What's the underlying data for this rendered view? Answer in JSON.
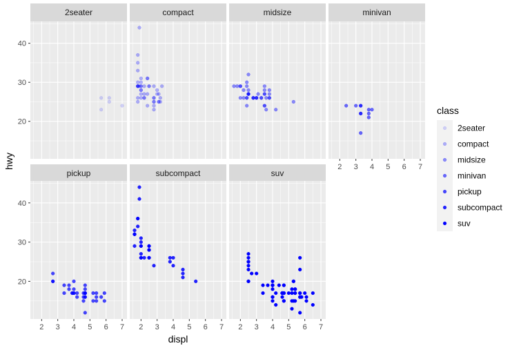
{
  "chart_data": {
    "type": "scatter",
    "facet_by": "class",
    "xlabel": "displ",
    "ylabel": "hwy",
    "x_ticks": [
      2,
      3,
      4,
      5,
      6,
      7
    ],
    "y_ticks": [
      20,
      30,
      40
    ],
    "xlim": [
      1.3,
      7.3
    ],
    "ylim": [
      10.4,
      45.6
    ],
    "legend": {
      "title": "class",
      "position": "right",
      "entries": [
        {
          "label": "2seater",
          "alpha": 0.15
        },
        {
          "label": "compact",
          "alpha": 0.29
        },
        {
          "label": "midsize",
          "alpha": 0.43
        },
        {
          "label": "minivan",
          "alpha": 0.57
        },
        {
          "label": "pickup",
          "alpha": 0.71
        },
        {
          "label": "subcompact",
          "alpha": 0.86
        },
        {
          "label": "suv",
          "alpha": 1.0
        }
      ]
    },
    "point_color": "#0000ff",
    "panel_background": "#ebebeb",
    "strip_background": "#d9d9d9",
    "panels": [
      {
        "name": "2seater",
        "points": [
          [
            5.7,
            26
          ],
          [
            5.7,
            23
          ],
          [
            6.2,
            26
          ],
          [
            6.2,
            25
          ],
          [
            7.0,
            24
          ]
        ]
      },
      {
        "name": "compact",
        "points": [
          [
            1.8,
            29
          ],
          [
            1.8,
            29
          ],
          [
            2.0,
            31
          ],
          [
            2.0,
            30
          ],
          [
            2.8,
            26
          ],
          [
            2.8,
            26
          ],
          [
            3.1,
            27
          ],
          [
            1.8,
            26
          ],
          [
            1.8,
            25
          ],
          [
            2.0,
            28
          ],
          [
            2.0,
            27
          ],
          [
            2.8,
            25
          ],
          [
            2.8,
            25
          ],
          [
            3.1,
            25
          ],
          [
            3.1,
            25
          ],
          [
            2.2,
            26
          ],
          [
            2.2,
            29
          ],
          [
            2.4,
            31
          ],
          [
            2.4,
            31
          ],
          [
            3.0,
            28
          ],
          [
            3.0,
            27
          ],
          [
            3.3,
            29
          ],
          [
            1.8,
            29
          ],
          [
            1.8,
            29
          ],
          [
            1.8,
            33
          ],
          [
            1.8,
            35
          ],
          [
            1.8,
            37
          ],
          [
            1.9,
            44
          ],
          [
            1.9,
            29
          ],
          [
            2.0,
            26
          ],
          [
            2.0,
            29
          ],
          [
            2.0,
            29
          ],
          [
            2.0,
            28
          ],
          [
            2.5,
            29
          ],
          [
            2.5,
            29
          ],
          [
            2.8,
            23
          ],
          [
            2.8,
            24
          ],
          [
            2.8,
            29
          ],
          [
            3.2,
            25
          ],
          [
            3.2,
            26
          ],
          [
            1.8,
            30
          ],
          [
            2.2,
            27
          ],
          [
            2.2,
            26
          ],
          [
            2.4,
            24
          ],
          [
            2.4,
            27
          ]
        ]
      },
      {
        "name": "midsize",
        "points": [
          [
            2.4,
            30
          ],
          [
            2.4,
            29
          ],
          [
            2.5,
            32
          ],
          [
            2.5,
            27
          ],
          [
            3.3,
            26
          ],
          [
            3.3,
            26
          ],
          [
            3.5,
            27
          ],
          [
            3.5,
            28
          ],
          [
            3.5,
            29
          ],
          [
            3.8,
            26
          ],
          [
            3.8,
            26
          ],
          [
            3.8,
            28
          ],
          [
            3.8,
            27
          ],
          [
            1.6,
            29
          ],
          [
            2.0,
            29
          ],
          [
            2.4,
            26
          ],
          [
            2.5,
            27
          ],
          [
            2.8,
            26
          ],
          [
            2.8,
            26
          ],
          [
            3.1,
            27
          ],
          [
            3.6,
            26
          ],
          [
            3.6,
            23
          ],
          [
            4.2,
            23
          ],
          [
            2.0,
            29
          ],
          [
            2.0,
            26
          ],
          [
            2.4,
            24
          ],
          [
            2.4,
            26
          ],
          [
            2.5,
            27
          ],
          [
            2.5,
            28
          ],
          [
            3.0,
            26
          ],
          [
            3.0,
            26
          ],
          [
            3.5,
            24
          ],
          [
            3.5,
            27
          ],
          [
            5.3,
            25
          ],
          [
            2.2,
            28
          ],
          [
            2.2,
            26
          ],
          [
            2.5,
            27
          ],
          [
            3.0,
            26
          ],
          [
            3.5,
            24
          ],
          [
            1.8,
            29
          ],
          [
            2.8,
            26
          ]
        ]
      },
      {
        "name": "minivan",
        "points": [
          [
            2.4,
            24
          ],
          [
            3.0,
            24
          ],
          [
            3.3,
            22
          ],
          [
            3.3,
            22
          ],
          [
            3.3,
            24
          ],
          [
            3.3,
            24
          ],
          [
            3.3,
            17
          ],
          [
            3.8,
            22
          ],
          [
            3.8,
            21
          ],
          [
            3.8,
            23
          ],
          [
            4.0,
            23
          ]
        ]
      },
      {
        "name": "pickup",
        "points": [
          [
            2.7,
            20
          ],
          [
            2.7,
            22
          ],
          [
            2.7,
            20
          ],
          [
            3.4,
            17
          ],
          [
            3.4,
            19
          ],
          [
            3.7,
            18
          ],
          [
            3.7,
            19
          ],
          [
            3.9,
            17
          ],
          [
            3.9,
            17
          ],
          [
            4.0,
            17
          ],
          [
            4.0,
            20
          ],
          [
            4.7,
            17
          ],
          [
            4.7,
            12
          ],
          [
            4.7,
            17
          ],
          [
            4.7,
            17
          ],
          [
            4.7,
            17
          ],
          [
            4.7,
            16
          ],
          [
            4.7,
            19
          ],
          [
            5.2,
            17
          ],
          [
            5.2,
            15
          ],
          [
            5.7,
            16
          ],
          [
            5.9,
            17
          ],
          [
            4.2,
            17
          ],
          [
            4.2,
            16
          ],
          [
            4.6,
            16
          ],
          [
            4.6,
            17
          ],
          [
            4.6,
            15
          ],
          [
            5.4,
            15
          ],
          [
            5.4,
            17
          ],
          [
            5.4,
            16
          ],
          [
            5.9,
            15
          ],
          [
            4.0,
            17
          ],
          [
            4.0,
            18
          ],
          [
            4.7,
            16
          ],
          [
            4.7,
            18
          ]
        ]
      },
      {
        "name": "subcompact",
        "points": [
          [
            3.8,
            26
          ],
          [
            3.8,
            25
          ],
          [
            4.0,
            26
          ],
          [
            4.0,
            24
          ],
          [
            4.6,
            21
          ],
          [
            4.6,
            22
          ],
          [
            4.6,
            23
          ],
          [
            5.4,
            20
          ],
          [
            1.6,
            33
          ],
          [
            1.6,
            32
          ],
          [
            1.6,
            32
          ],
          [
            1.6,
            29
          ],
          [
            1.6,
            32
          ],
          [
            1.8,
            34
          ],
          [
            1.8,
            36
          ],
          [
            1.8,
            36
          ],
          [
            2.0,
            29
          ],
          [
            2.0,
            26
          ],
          [
            2.0,
            27
          ],
          [
            2.0,
            30
          ],
          [
            2.0,
            31
          ],
          [
            2.2,
            26
          ],
          [
            2.5,
            26
          ],
          [
            2.5,
            28
          ],
          [
            2.5,
            26
          ],
          [
            2.5,
            29
          ],
          [
            2.5,
            28
          ],
          [
            2.8,
            24
          ],
          [
            1.9,
            44
          ],
          [
            1.9,
            41
          ],
          [
            2.0,
            29
          ],
          [
            2.0,
            26
          ],
          [
            2.5,
            28
          ],
          [
            2.5,
            29
          ]
        ]
      },
      {
        "name": "suv",
        "points": [
          [
            5.3,
            20
          ],
          [
            5.3,
            15
          ],
          [
            5.3,
            20
          ],
          [
            5.7,
            17
          ],
          [
            6.0,
            17
          ],
          [
            5.7,
            26
          ],
          [
            5.7,
            23
          ],
          [
            6.5,
            17
          ],
          [
            4.0,
            19
          ],
          [
            4.0,
            18
          ],
          [
            4.6,
            17
          ],
          [
            5.0,
            17
          ],
          [
            4.7,
            19
          ],
          [
            4.7,
            19
          ],
          [
            5.2,
            18
          ],
          [
            5.2,
            17
          ],
          [
            3.0,
            22
          ],
          [
            3.7,
            19
          ],
          [
            4.0,
            19
          ],
          [
            4.6,
            17
          ],
          [
            4.7,
            17
          ],
          [
            5.7,
            16
          ],
          [
            6.1,
            16
          ],
          [
            5.4,
            18
          ],
          [
            5.4,
            17
          ],
          [
            4.4,
            19
          ],
          [
            4.7,
            17
          ],
          [
            5.2,
            15
          ],
          [
            5.7,
            17
          ],
          [
            5.8,
            16
          ],
          [
            4.0,
            19
          ],
          [
            4.0,
            20
          ],
          [
            4.6,
            17
          ],
          [
            5.4,
            18
          ],
          [
            2.5,
            25
          ],
          [
            2.5,
            24
          ],
          [
            2.5,
            27
          ],
          [
            2.5,
            25
          ],
          [
            2.5,
            26
          ],
          [
            2.5,
            23
          ],
          [
            2.5,
            20
          ],
          [
            2.5,
            20
          ],
          [
            2.7,
            22
          ],
          [
            3.4,
            19
          ],
          [
            4.0,
            15
          ],
          [
            4.0,
            19
          ],
          [
            4.6,
            17
          ],
          [
            4.7,
            15
          ],
          [
            5.7,
            16
          ],
          [
            6.1,
            15
          ],
          [
            4.2,
            17
          ],
          [
            4.6,
            16
          ],
          [
            5.4,
            15
          ],
          [
            3.4,
            17
          ],
          [
            4.0,
            16
          ],
          [
            4.6,
            17
          ],
          [
            5.4,
            17
          ],
          [
            4.0,
            16
          ],
          [
            4.2,
            14
          ],
          [
            4.7,
            17
          ],
          [
            4.7,
            15
          ],
          [
            5.2,
            13
          ],
          [
            5.7,
            12
          ],
          [
            6.5,
            14
          ]
        ]
      }
    ]
  }
}
